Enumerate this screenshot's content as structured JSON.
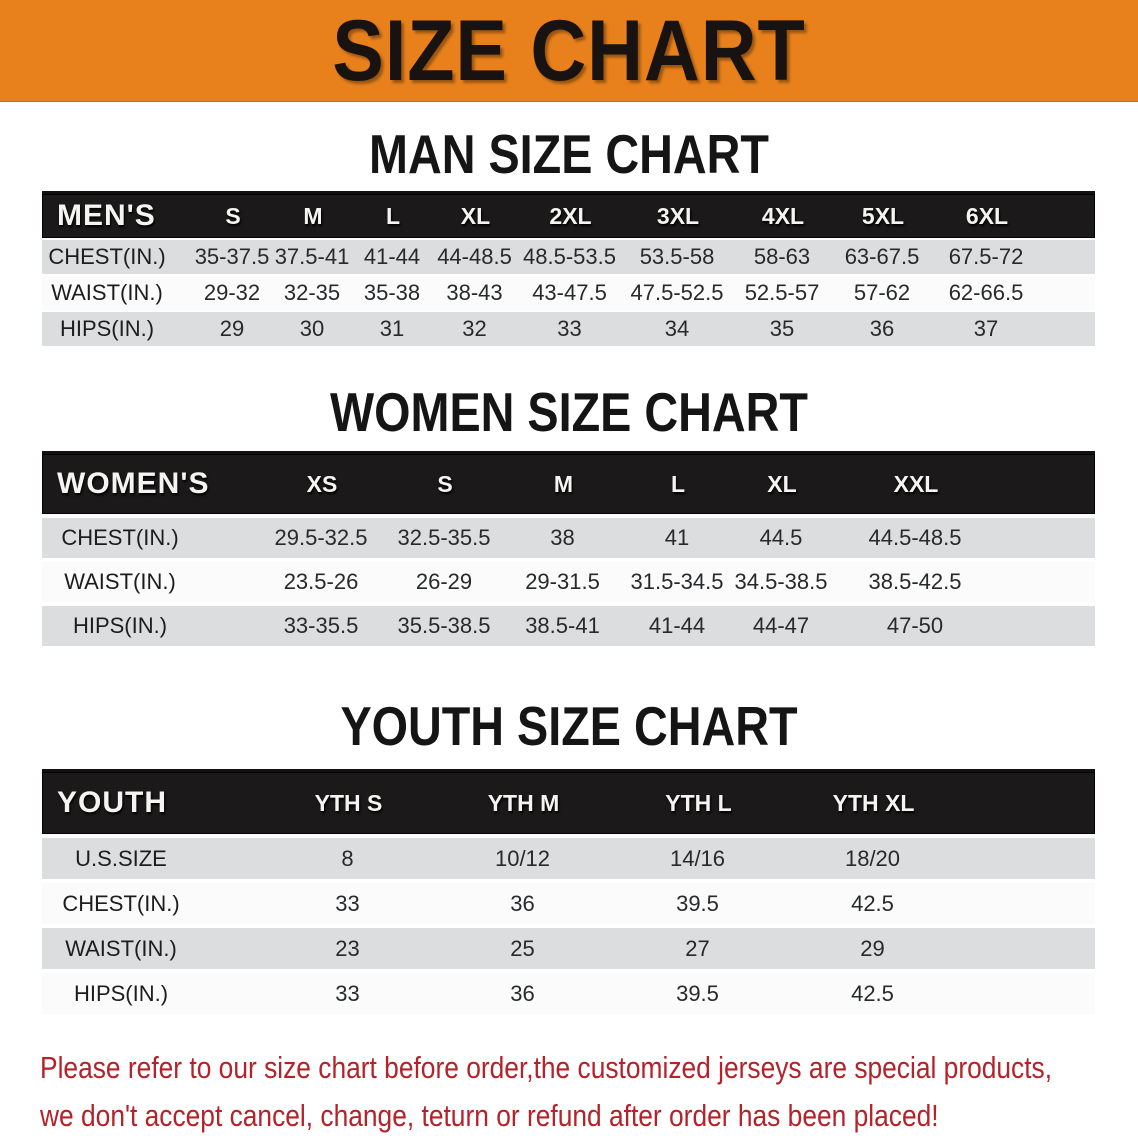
{
  "banner": {
    "title": "SIZE CHART",
    "bg_color": "#E8811C"
  },
  "sections": {
    "men": {
      "heading": "MAN SIZE CHART",
      "header": [
        "MEN'S",
        "S",
        "M",
        "L",
        "XL",
        "2XL",
        "3XL",
        "4XL",
        "5XL",
        "6XL"
      ],
      "rows": [
        {
          "label": "CHEST(IN.)",
          "cells": [
            "35-37.5",
            "37.5-41",
            "41-44",
            "44-48.5",
            "48.5-53.5",
            "53.5-58",
            "58-63",
            "63-67.5",
            "67.5-72"
          ]
        },
        {
          "label": "WAIST(IN.)",
          "cells": [
            "29-32",
            "32-35",
            "35-38",
            "38-43",
            "43-47.5",
            "47.5-52.5",
            "52.5-57",
            "57-62",
            "62-66.5"
          ]
        },
        {
          "label": "HIPS(IN.)",
          "cells": [
            "29",
            "30",
            "31",
            "32",
            "33",
            "34",
            "35",
            "36",
            "37"
          ]
        }
      ]
    },
    "women": {
      "heading": "WOMEN SIZE CHART",
      "header": [
        "WOMEN'S",
        "XS",
        "S",
        "M",
        "L",
        "XL",
        "XXL"
      ],
      "rows": [
        {
          "label": "CHEST(IN.)",
          "cells": [
            "29.5-32.5",
            "32.5-35.5",
            "38",
            "41",
            "44.5",
            "44.5-48.5"
          ]
        },
        {
          "label": "WAIST(IN.)",
          "cells": [
            "23.5-26",
            "26-29",
            "29-31.5",
            "31.5-34.5",
            "34.5-38.5",
            "38.5-42.5"
          ]
        },
        {
          "label": "HIPS(IN.)",
          "cells": [
            "33-35.5",
            "35.5-38.5",
            "38.5-41",
            "41-44",
            "44-47",
            "47-50"
          ]
        }
      ]
    },
    "youth": {
      "heading": "YOUTH SIZE CHART",
      "header": [
        "YOUTH",
        "YTH S",
        "YTH M",
        "YTH L",
        "YTH XL"
      ],
      "rows": [
        {
          "label": "U.S.SIZE",
          "cells": [
            "8",
            "10/12",
            "14/16",
            "18/20"
          ]
        },
        {
          "label": "CHEST(IN.)",
          "cells": [
            "33",
            "36",
            "39.5",
            "42.5"
          ]
        },
        {
          "label": "WAIST(IN.)",
          "cells": [
            "23",
            "25",
            "27",
            "29"
          ]
        },
        {
          "label": "HIPS(IN.)",
          "cells": [
            "33",
            "36",
            "39.5",
            "42.5"
          ]
        }
      ]
    }
  },
  "footer": {
    "line1": "Please refer to our size chart before order,the customized jerseys are special products,",
    "line2": "we don't accept cancel, change, teturn or refund after order has been placed!",
    "text_color": "#B4232A"
  }
}
